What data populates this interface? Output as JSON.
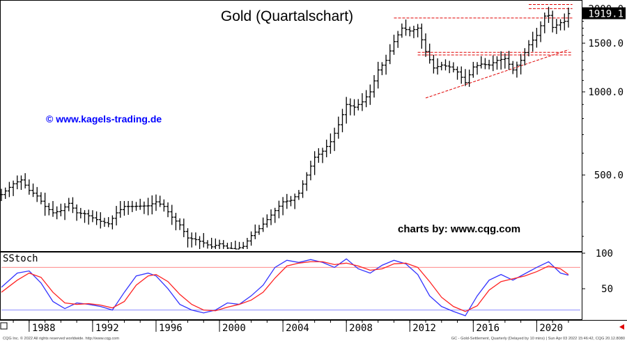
{
  "colors": {
    "bars": "#000000",
    "trendlines": "#e00000",
    "fast_stoch": "#3333ff",
    "slow_stoch": "#ff2222",
    "stoch_upper_band": "#ff8888",
    "stoch_lower_band": "#8888ff",
    "price_tag_bg": "#000000",
    "price_tag_fg": "#ffffff",
    "watermark": "#0000ff",
    "nav_arrow": "#e00000"
  },
  "chart_data": [
    {
      "type": "ohlc",
      "title": "Gold (Quartalschart)",
      "watermark": "© www.kagels-trading.de",
      "credit": "charts by: www.cqg.com",
      "scale": "log",
      "ylim": [
        270,
        2100
      ],
      "y_ticks": [
        {
          "value": 2000,
          "label": "2000.0"
        },
        {
          "value": 1500,
          "label": "1500.0"
        },
        {
          "value": 1000,
          "label": "1000.0"
        },
        {
          "value": 500,
          "label": "500.0"
        }
      ],
      "last_price": {
        "value": 1919.1,
        "label": "1919.1"
      },
      "xlim": [
        1986.25,
        2022.75
      ],
      "x_ticks": [
        {
          "value": 1988,
          "label": "1988"
        },
        {
          "value": 1992,
          "label": "1992"
        },
        {
          "value": 1996,
          "label": "1996"
        },
        {
          "value": 2000,
          "label": "2000"
        },
        {
          "value": 2004,
          "label": "2004"
        },
        {
          "value": 2008,
          "label": "2008"
        },
        {
          "value": 2012,
          "label": "2012"
        },
        {
          "value": 2016,
          "label": "2016"
        },
        {
          "value": 2020,
          "label": "2020"
        }
      ],
      "close_anchors": [
        [
          1986.25,
          425
        ],
        [
          1987.0,
          465
        ],
        [
          1987.5,
          480
        ],
        [
          1988.0,
          440
        ],
        [
          1988.5,
          420
        ],
        [
          1989.0,
          385
        ],
        [
          1989.5,
          365
        ],
        [
          1990.0,
          372
        ],
        [
          1990.5,
          395
        ],
        [
          1991.0,
          365
        ],
        [
          1991.5,
          362
        ],
        [
          1992.0,
          350
        ],
        [
          1992.5,
          340
        ],
        [
          1993.0,
          333
        ],
        [
          1993.5,
          365
        ],
        [
          1994.0,
          385
        ],
        [
          1994.5,
          385
        ],
        [
          1995.5,
          387
        ],
        [
          1996.0,
          400
        ],
        [
          1996.5,
          385
        ],
        [
          1997.0,
          352
        ],
        [
          1997.5,
          330
        ],
        [
          1998.0,
          296
        ],
        [
          1998.5,
          292
        ],
        [
          1999.0,
          284
        ],
        [
          1999.5,
          275
        ],
        [
          2000.0,
          282
        ],
        [
          2000.5,
          272
        ],
        [
          2001.0,
          270
        ],
        [
          2001.5,
          276
        ],
        [
          2002.0,
          302
        ],
        [
          2002.5,
          320
        ],
        [
          2003.0,
          345
        ],
        [
          2003.5,
          372
        ],
        [
          2004.0,
          400
        ],
        [
          2004.5,
          405
        ],
        [
          2005.0,
          430
        ],
        [
          2005.5,
          500
        ],
        [
          2006.0,
          580
        ],
        [
          2006.5,
          610
        ],
        [
          2007.0,
          660
        ],
        [
          2007.5,
          760
        ],
        [
          2008.0,
          900
        ],
        [
          2008.5,
          880
        ],
        [
          2009.0,
          920
        ],
        [
          2009.5,
          1000
        ],
        [
          2010.0,
          1200
        ],
        [
          2010.5,
          1300
        ],
        [
          2011.0,
          1520
        ],
        [
          2011.5,
          1700
        ],
        [
          2012.0,
          1660
        ],
        [
          2012.5,
          1700
        ],
        [
          2013.0,
          1400
        ],
        [
          2013.5,
          1220
        ],
        [
          2014.0,
          1250
        ],
        [
          2014.5,
          1230
        ],
        [
          2015.0,
          1180
        ],
        [
          2015.5,
          1080
        ],
        [
          2016.0,
          1230
        ],
        [
          2016.5,
          1260
        ],
        [
          2017.0,
          1250
        ],
        [
          2017.5,
          1300
        ],
        [
          2018.0,
          1320
        ],
        [
          2018.5,
          1200
        ],
        [
          2019.0,
          1300
        ],
        [
          2019.5,
          1480
        ],
        [
          2020.0,
          1600
        ],
        [
          2020.5,
          1880
        ],
        [
          2020.75,
          1890
        ],
        [
          2021.0,
          1710
        ],
        [
          2021.5,
          1780
        ],
        [
          2021.75,
          1800
        ],
        [
          2022.0,
          1919.1
        ]
      ],
      "volatility": 0.09,
      "trendlines": [
        {
          "kind": "dashed",
          "from": [
            2011.0,
            1850
          ],
          "to": [
            2022.25,
            1850
          ]
        },
        {
          "kind": "dashed",
          "from": [
            2012.5,
            1390
          ],
          "to": [
            2022.25,
            1390
          ]
        },
        {
          "kind": "dashed",
          "from": [
            2012.5,
            1360
          ],
          "to": [
            2022.25,
            1360
          ]
        },
        {
          "kind": "dashed",
          "from": [
            2019.5,
            2070
          ],
          "to": [
            2022.25,
            2070
          ]
        },
        {
          "kind": "dashed",
          "from": [
            2019.5,
            2000
          ],
          "to": [
            2022.25,
            2000
          ]
        },
        {
          "kind": "dashed",
          "from": [
            2013.0,
            950
          ],
          "to": [
            2022.0,
            1420
          ]
        }
      ]
    },
    {
      "type": "line",
      "label": "SStoch",
      "ylim": [
        8,
        100
      ],
      "y_ticks": [
        {
          "value": 100,
          "label": "100"
        },
        {
          "value": 50,
          "label": "50"
        }
      ],
      "bands": [
        80,
        20
      ],
      "series": [
        {
          "key": "fast",
          "x": [
            1986.25,
            1987.25,
            1988.0,
            1988.75,
            1989.5,
            1990.25,
            1991.0,
            1991.75,
            1992.5,
            1993.25,
            1994.0,
            1994.75,
            1995.5,
            1996.0,
            1996.75,
            1997.5,
            1998.25,
            1999.0,
            1999.75,
            2000.5,
            2001.25,
            2002.0,
            2002.75,
            2003.5,
            2004.25,
            2005.0,
            2005.75,
            2006.5,
            2007.25,
            2008.0,
            2008.75,
            2009.5,
            2010.25,
            2011.0,
            2011.75,
            2012.5,
            2013.25,
            2014.0,
            2014.75,
            2015.5,
            2016.25,
            2017.0,
            2017.75,
            2018.5,
            2019.25,
            2020.0,
            2020.75,
            2021.5,
            2022.0
          ],
          "y": [
            52,
            72,
            75,
            58,
            32,
            22,
            30,
            28,
            25,
            20,
            45,
            68,
            72,
            68,
            50,
            28,
            20,
            16,
            20,
            30,
            28,
            40,
            55,
            80,
            90,
            87,
            91,
            87,
            80,
            92,
            78,
            72,
            83,
            90,
            85,
            70,
            40,
            25,
            18,
            12,
            40,
            62,
            70,
            62,
            71,
            80,
            88,
            72,
            69
          ]
        },
        {
          "key": "slow",
          "x": [
            1986.25,
            1987.25,
            1988.0,
            1988.75,
            1989.5,
            1990.25,
            1991.0,
            1991.75,
            1992.5,
            1993.25,
            1994.0,
            1994.75,
            1995.5,
            1996.0,
            1996.75,
            1997.5,
            1998.25,
            1999.0,
            1999.75,
            2000.5,
            2001.25,
            2002.0,
            2002.75,
            2003.5,
            2004.25,
            2005.0,
            2005.75,
            2006.5,
            2007.25,
            2008.0,
            2008.75,
            2009.5,
            2010.25,
            2011.0,
            2011.75,
            2012.5,
            2013.25,
            2014.0,
            2014.75,
            2015.5,
            2016.25,
            2017.0,
            2017.75,
            2018.5,
            2019.25,
            2020.0,
            2020.75,
            2021.5,
            2022.0
          ],
          "y": [
            45,
            62,
            72,
            66,
            45,
            30,
            28,
            29,
            27,
            23,
            32,
            55,
            68,
            70,
            60,
            42,
            28,
            20,
            19,
            24,
            28,
            34,
            45,
            65,
            82,
            86,
            88,
            88,
            84,
            86,
            82,
            76,
            78,
            85,
            86,
            80,
            60,
            38,
            25,
            18,
            26,
            48,
            60,
            64,
            68,
            74,
            82,
            78,
            70
          ]
        }
      ]
    }
  ],
  "footer": {
    "left": "CQG Inc. © 2022 All rights reserved worldwide.  http://www.cqg.com",
    "right": "GC - Gold-Settlement, Quarterly (Delayed by 10 mins)  |  Sun Apr 03 2022 15:46:42,  CQG 20.12.8080"
  }
}
